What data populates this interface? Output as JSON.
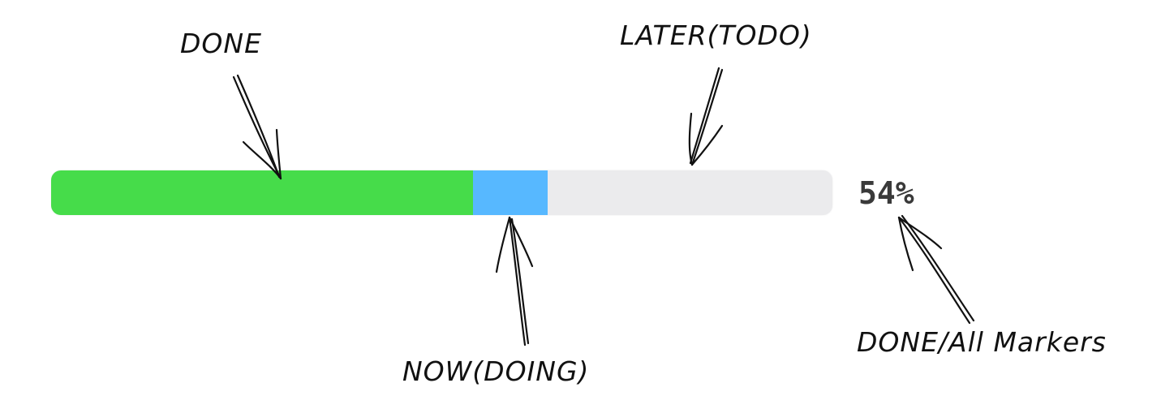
{
  "annotations": {
    "done": "DONE",
    "later": "LATER(TODO)",
    "now": "NOW(DOING)",
    "markers": "DONE/All Markers"
  },
  "progress": {
    "done_fraction": 0.54,
    "doing_fraction": 0.095,
    "todo_fraction": 0.365,
    "percent_label": "54%"
  },
  "colors": {
    "done": "#46dc4a",
    "doing": "#57b8ff",
    "todo": "#ebebed"
  }
}
